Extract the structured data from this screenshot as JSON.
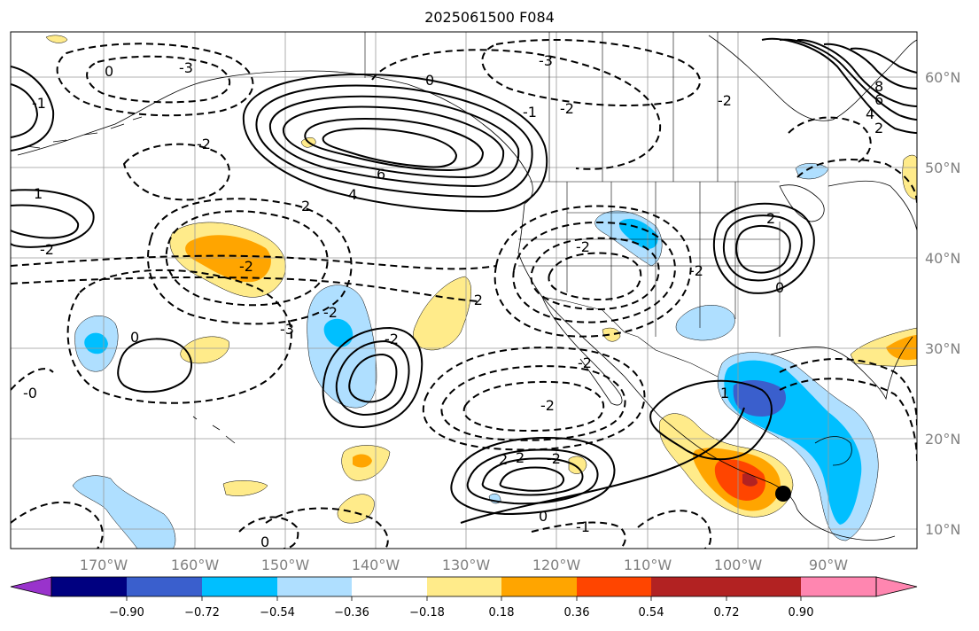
{
  "title": "2025061500 F084",
  "map": {
    "lat_labels": [
      "60°N",
      "50°N",
      "40°N",
      "30°N",
      "20°N",
      "10°N"
    ],
    "lon_labels": [
      "170°W",
      "160°W",
      "150°W",
      "140°W",
      "130°W",
      "120°W",
      "110°W",
      "100°W",
      "90°W"
    ],
    "contour_labels": [
      "0",
      "-3",
      "-1",
      "-2",
      "6",
      "4",
      "2",
      "0",
      "8",
      "6",
      "4",
      "2",
      "-1",
      "-2",
      "-3",
      "-2",
      "-2",
      "-3",
      "-2",
      "0",
      "-2",
      "-2",
      "2",
      "-2",
      "-2",
      "-2",
      "0",
      "2",
      "1",
      "2",
      "-2",
      "0",
      "-2",
      "0",
      "-1",
      "1",
      "-0",
      "-2"
    ]
  },
  "colorbar": {
    "colors": [
      "#9933cc",
      "#000080",
      "#3a5fcd",
      "#00bfff",
      "#afdfff",
      "#ffffff",
      "#ffeb8a",
      "#ffa500",
      "#ff4500",
      "#b22222",
      "#ff86b0"
    ],
    "tick_labels": [
      "−0.90",
      "−0.72",
      "−0.54",
      "−0.36",
      "−0.18",
      "0.18",
      "0.36",
      "0.54",
      "0.72",
      "0.90"
    ]
  }
}
